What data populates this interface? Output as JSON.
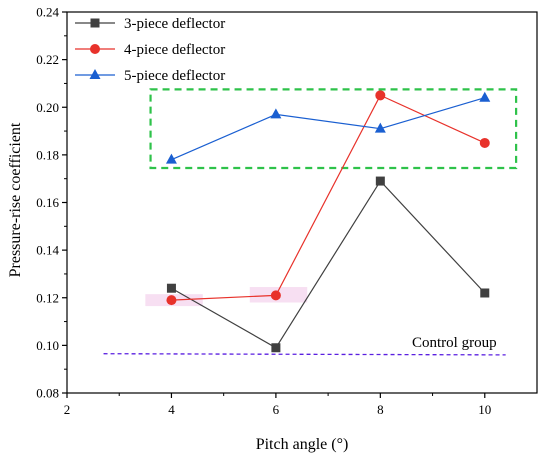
{
  "chart_data": {
    "type": "line",
    "title": "",
    "xlabel": "Pitch angle (°)",
    "ylabel": "Pressure-rise coefficient",
    "xlim": [
      2,
      11
    ],
    "ylim": [
      0.08,
      0.24
    ],
    "xticks": [
      2,
      4,
      6,
      8,
      10
    ],
    "xtick_labels": [
      "2",
      "4",
      "6",
      "8",
      "10"
    ],
    "yticks": [
      0.08,
      0.1,
      0.12,
      0.14,
      0.16,
      0.18,
      0.2,
      0.22,
      0.24
    ],
    "ytick_labels": [
      "0.08",
      "0.10",
      "0.12",
      "0.14",
      "0.16",
      "0.18",
      "0.20",
      "0.22",
      "0.24"
    ],
    "grid": false,
    "legend_position": "top-left",
    "series": [
      {
        "name": "3-piece deflector",
        "color": "#404040",
        "marker": "square",
        "x": [
          4,
          6,
          8,
          10
        ],
        "y": [
          0.124,
          0.099,
          0.169,
          0.122
        ]
      },
      {
        "name": "4-piece deflector",
        "color": "#e8322b",
        "marker": "circle",
        "x": [
          4,
          6,
          8,
          10
        ],
        "y": [
          0.119,
          0.121,
          0.205,
          0.185
        ]
      },
      {
        "name": "5-piece deflector",
        "color": "#1a5fd1",
        "marker": "triangle",
        "x": [
          4,
          6,
          8,
          10
        ],
        "y": [
          0.178,
          0.197,
          0.191,
          0.204
        ]
      }
    ],
    "control_group": {
      "label": "Control group",
      "color": "#5a1fe0",
      "x": [
        2.7,
        10.4
      ],
      "y": [
        0.0965,
        0.096
      ]
    },
    "highlight_box": {
      "color": "#2ec24a",
      "x": [
        3.6,
        10.6
      ],
      "y": [
        0.1745,
        0.2075
      ]
    },
    "shaded_markers": [
      {
        "x": [
          3.5,
          4.6
        ],
        "y": [
          0.1165,
          0.1215
        ],
        "color": "#f7dff2"
      },
      {
        "x": [
          5.5,
          6.6
        ],
        "y": [
          0.118,
          0.1245
        ],
        "color": "#f7dff2"
      }
    ]
  }
}
